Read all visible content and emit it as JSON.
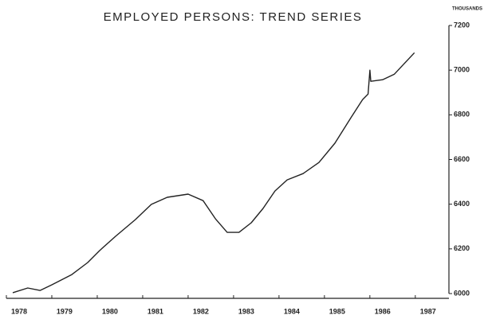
{
  "chart_data": {
    "type": "line",
    "title": "EMPLOYED PERSONS: TREND SERIES",
    "y_unit_label": "THOUSANDS",
    "x": [
      1978.14,
      1978.47,
      1978.74,
      1979.0,
      1979.44,
      1979.79,
      1980.05,
      1980.4,
      1980.84,
      1981.19,
      1981.54,
      1982.0,
      1982.33,
      1982.6,
      1982.86,
      1983.12,
      1983.39,
      1983.65,
      1983.91,
      1984.18,
      1984.53,
      1984.88,
      1985.23,
      1985.58,
      1985.84,
      1985.96,
      1986.0,
      1986.02,
      1986.28,
      1986.54,
      1986.98
    ],
    "series": [
      {
        "name": "Employed persons",
        "color": "#222222",
        "values": [
          6004,
          6025,
          6014,
          6039,
          6085,
          6139,
          6192,
          6256,
          6331,
          6399,
          6431,
          6445,
          6416,
          6335,
          6274,
          6274,
          6317,
          6381,
          6459,
          6509,
          6537,
          6587,
          6673,
          6786,
          6868,
          6893,
          7000,
          6950,
          6957,
          6982,
          7078
        ]
      }
    ],
    "xlim": [
      1978,
      1987.74
    ],
    "xticks": [
      {
        "value": 1978,
        "label": "1978"
      },
      {
        "value": 1979,
        "label": "1979"
      },
      {
        "value": 1980,
        "label": "1980"
      },
      {
        "value": 1981,
        "label": "1981"
      },
      {
        "value": 1982,
        "label": "1982"
      },
      {
        "value": 1983,
        "label": "1983"
      },
      {
        "value": 1984,
        "label": "1984"
      },
      {
        "value": 1985,
        "label": "1985"
      },
      {
        "value": 1986,
        "label": "1986"
      },
      {
        "value": 1987,
        "label": "1987"
      }
    ],
    "ylim": [
      6000,
      7200
    ],
    "yticks": [
      6000,
      6200,
      6400,
      6600,
      6800,
      7000,
      7200
    ],
    "y_axis_side": "right",
    "grid": false
  }
}
